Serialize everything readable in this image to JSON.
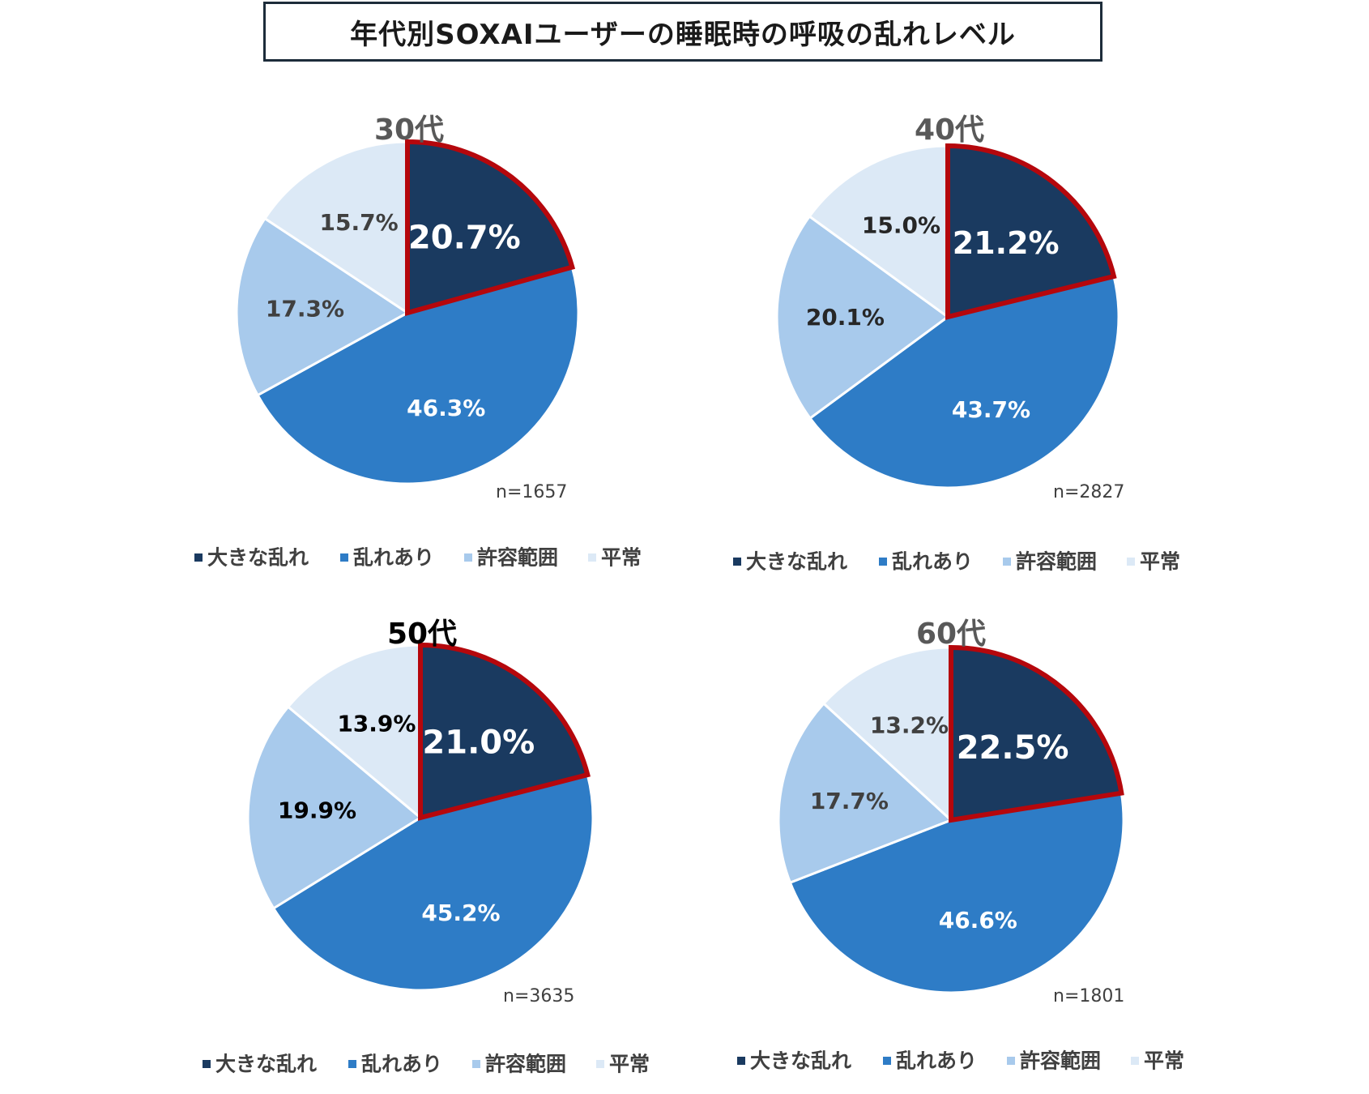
{
  "title": "年代別SOXAIユーザーの睡眠時の呼吸の乱れレベル",
  "categories": [
    "大きな乱れ",
    "乱れあり",
    "許容範囲",
    "平常"
  ],
  "colors": {
    "大きな乱れ": "#1a3a60",
    "乱れあり": "#2e7cc6",
    "許容範囲": "#a8caec",
    "平常": "#dce9f6",
    "highlight_border": "#b5070c"
  },
  "chart_data": [
    {
      "type": "pie",
      "title": "30代",
      "categories": [
        "大きな乱れ",
        "乱れあり",
        "許容範囲",
        "平常"
      ],
      "values": [
        20.7,
        46.3,
        17.3,
        15.7
      ],
      "labels": [
        "20.7%",
        "46.3%",
        "17.3%",
        "15.7%"
      ],
      "n_label": "n=1657",
      "legend": "bottom"
    },
    {
      "type": "pie",
      "title": "40代",
      "categories": [
        "大きな乱れ",
        "乱れあり",
        "許容範囲",
        "平常"
      ],
      "values": [
        21.2,
        43.7,
        20.1,
        15.0
      ],
      "labels": [
        "21.2%",
        "43.7%",
        "20.1%",
        "15.0%"
      ],
      "n_label": "n=2827",
      "legend": "bottom"
    },
    {
      "type": "pie",
      "title": "50代",
      "categories": [
        "大きな乱れ",
        "乱れあり",
        "許容範囲",
        "平常"
      ],
      "values": [
        21.0,
        45.2,
        19.9,
        13.9
      ],
      "labels": [
        "21.0%",
        "45.2%",
        "19.9%",
        "13.9%"
      ],
      "n_label": "n=3635",
      "legend": "bottom"
    },
    {
      "type": "pie",
      "title": "60代",
      "categories": [
        "大きな乱れ",
        "乱れあり",
        "許容範囲",
        "平常"
      ],
      "values": [
        22.5,
        46.6,
        17.7,
        13.2
      ],
      "labels": [
        "22.5%",
        "46.6%",
        "17.7%",
        "13.2%"
      ],
      "n_label": "n=1801",
      "legend": "bottom"
    }
  ]
}
